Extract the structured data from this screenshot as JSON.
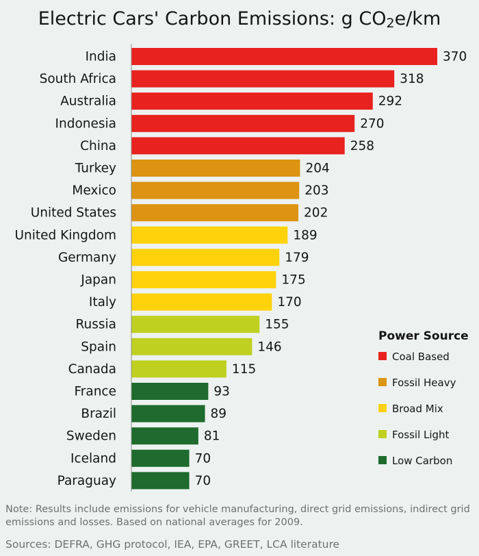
{
  "title_main": "Electric Cars' Carbon Emissions: g CO",
  "title_sub": "2",
  "title_tail": "e/km",
  "note": "Note:  Results include emissions for vehicle manufacturing, direct grid emissions, indirect grid emissions and losses.  Based on national averages for 2009.",
  "sources": "Sources: DEFRA, GHG protocol, IEA, EPA, GREET, LCA literature",
  "colors": {
    "coal": "#e8221f",
    "fossil_heavy": "#dc9412",
    "broad_mix": "#ffd20c",
    "fossil_light": "#bfd021",
    "low_carbon": "#1e6b2d"
  },
  "chart_data": {
    "type": "bar",
    "orientation": "horizontal",
    "categories": [
      "India",
      "South Africa",
      "Australia",
      "Indonesia",
      "China",
      "Turkey",
      "Mexico",
      "United States",
      "United Kingdom",
      "Germany",
      "Japan",
      "Italy",
      "Russia",
      "Spain",
      "Canada",
      "France",
      "Brazil",
      "Sweden",
      "Iceland",
      "Paraguay"
    ],
    "values": [
      370,
      318,
      292,
      270,
      258,
      204,
      203,
      202,
      189,
      179,
      175,
      170,
      155,
      146,
      115,
      93,
      89,
      81,
      70,
      70
    ],
    "groups": [
      "coal",
      "coal",
      "coal",
      "coal",
      "coal",
      "fossil_heavy",
      "fossil_heavy",
      "fossil_heavy",
      "broad_mix",
      "broad_mix",
      "broad_mix",
      "broad_mix",
      "fossil_light",
      "fossil_light",
      "fossil_light",
      "low_carbon",
      "low_carbon",
      "low_carbon",
      "low_carbon",
      "low_carbon"
    ],
    "xlim": [
      0,
      370
    ],
    "grid": false,
    "legend": {
      "title": "Power Source",
      "position": "right",
      "entries": [
        {
          "key": "coal",
          "label": "Coal Based"
        },
        {
          "key": "fossil_heavy",
          "label": "Fossil Heavy"
        },
        {
          "key": "broad_mix",
          "label": "Broad Mix"
        },
        {
          "key": "fossil_light",
          "label": "Fossil Light"
        },
        {
          "key": "low_carbon",
          "label": "Low Carbon"
        }
      ]
    }
  }
}
